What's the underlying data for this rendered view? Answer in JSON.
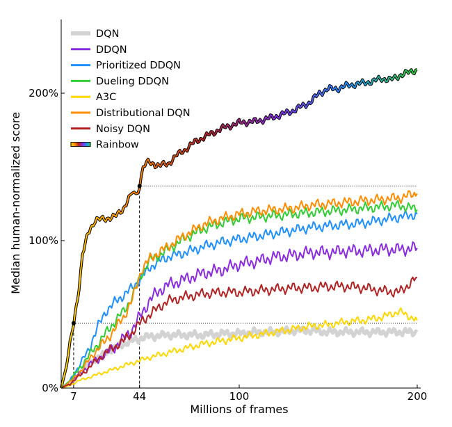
{
  "chart_data": {
    "type": "line",
    "title": "",
    "xlabel": "Millions of frames",
    "ylabel": "Median human-normalized score",
    "xlim": [
      0,
      200
    ],
    "ylim": [
      0,
      250
    ],
    "x_ticks": [
      7,
      44,
      100,
      200
    ],
    "y_ticks": [
      0,
      100,
      200
    ],
    "y_tick_labels": [
      "0%",
      "100%",
      "200%"
    ],
    "grid": false,
    "legend_position": "top-left",
    "reference_lines": [
      {
        "x": 7,
        "y": 44,
        "color": "#000000"
      },
      {
        "x": 44,
        "y": 137,
        "color": "#000000"
      }
    ],
    "series": [
      {
        "name": "DQN",
        "color": "#d3d3d3",
        "width": 5,
        "points": [
          [
            0,
            0
          ],
          [
            5,
            3
          ],
          [
            10,
            10
          ],
          [
            15,
            16
          ],
          [
            20,
            20
          ],
          [
            25,
            24
          ],
          [
            30,
            27
          ],
          [
            35,
            30
          ],
          [
            40,
            32
          ],
          [
            45,
            34
          ],
          [
            50,
            35
          ],
          [
            60,
            36
          ],
          [
            70,
            36
          ],
          [
            80,
            36
          ],
          [
            90,
            37
          ],
          [
            100,
            37
          ],
          [
            110,
            38
          ],
          [
            120,
            38
          ],
          [
            130,
            39
          ],
          [
            140,
            39
          ],
          [
            150,
            38
          ],
          [
            160,
            38
          ],
          [
            170,
            38
          ],
          [
            180,
            38
          ],
          [
            190,
            38
          ],
          [
            200,
            38
          ]
        ]
      },
      {
        "name": "DDQN",
        "color": "#8a2be2",
        "width": 2,
        "points": [
          [
            0,
            0
          ],
          [
            5,
            3
          ],
          [
            10,
            9
          ],
          [
            15,
            15
          ],
          [
            20,
            19
          ],
          [
            25,
            23
          ],
          [
            30,
            28
          ],
          [
            35,
            33
          ],
          [
            40,
            40
          ],
          [
            45,
            50
          ],
          [
            50,
            60
          ],
          [
            55,
            66
          ],
          [
            60,
            70
          ],
          [
            70,
            74
          ],
          [
            80,
            78
          ],
          [
            90,
            80
          ],
          [
            100,
            84
          ],
          [
            110,
            86
          ],
          [
            120,
            89
          ],
          [
            130,
            90
          ],
          [
            140,
            92
          ],
          [
            150,
            92
          ],
          [
            160,
            93
          ],
          [
            170,
            93
          ],
          [
            180,
            94
          ],
          [
            190,
            94
          ],
          [
            200,
            95
          ]
        ]
      },
      {
        "name": "Prioritized DDQN",
        "color": "#1e90ff",
        "width": 2,
        "points": [
          [
            0,
            0
          ],
          [
            5,
            5
          ],
          [
            10,
            15
          ],
          [
            15,
            25
          ],
          [
            20,
            40
          ],
          [
            25,
            52
          ],
          [
            30,
            58
          ],
          [
            35,
            63
          ],
          [
            40,
            68
          ],
          [
            45,
            75
          ],
          [
            50,
            82
          ],
          [
            55,
            86
          ],
          [
            60,
            89
          ],
          [
            70,
            92
          ],
          [
            80,
            96
          ],
          [
            90,
            99
          ],
          [
            100,
            101
          ],
          [
            110,
            103
          ],
          [
            120,
            105
          ],
          [
            130,
            107
          ],
          [
            140,
            109
          ],
          [
            150,
            110
          ],
          [
            160,
            111
          ],
          [
            170,
            112
          ],
          [
            180,
            114
          ],
          [
            190,
            116
          ],
          [
            200,
            118
          ]
        ]
      },
      {
        "name": "Dueling DDQN",
        "color": "#32cd32",
        "width": 2,
        "points": [
          [
            0,
            0
          ],
          [
            5,
            5
          ],
          [
            10,
            13
          ],
          [
            15,
            21
          ],
          [
            20,
            29
          ],
          [
            25,
            37
          ],
          [
            30,
            45
          ],
          [
            35,
            52
          ],
          [
            40,
            62
          ],
          [
            45,
            77
          ],
          [
            50,
            87
          ],
          [
            55,
            90
          ],
          [
            60,
            94
          ],
          [
            70,
            102
          ],
          [
            80,
            108
          ],
          [
            90,
            112
          ],
          [
            100,
            115
          ],
          [
            110,
            116
          ],
          [
            120,
            117
          ],
          [
            130,
            118
          ],
          [
            140,
            119
          ],
          [
            150,
            120
          ],
          [
            160,
            121
          ],
          [
            170,
            122
          ],
          [
            180,
            123
          ],
          [
            190,
            124
          ],
          [
            200,
            121
          ]
        ]
      },
      {
        "name": "A3C",
        "color": "#ffd700",
        "width": 2,
        "points": [
          [
            0,
            0
          ],
          [
            5,
            2
          ],
          [
            10,
            5
          ],
          [
            15,
            7
          ],
          [
            20,
            9
          ],
          [
            25,
            11
          ],
          [
            30,
            13
          ],
          [
            35,
            15
          ],
          [
            40,
            17
          ],
          [
            45,
            19
          ],
          [
            50,
            21
          ],
          [
            60,
            24
          ],
          [
            70,
            27
          ],
          [
            80,
            30
          ],
          [
            90,
            32
          ],
          [
            100,
            34
          ],
          [
            110,
            36
          ],
          [
            120,
            38
          ],
          [
            130,
            40
          ],
          [
            140,
            42
          ],
          [
            150,
            43
          ],
          [
            160,
            45
          ],
          [
            170,
            46
          ],
          [
            180,
            48
          ],
          [
            190,
            52
          ],
          [
            200,
            46
          ]
        ]
      },
      {
        "name": "Distributional DQN",
        "color": "#ff8c00",
        "width": 2,
        "points": [
          [
            0,
            0
          ],
          [
            5,
            4
          ],
          [
            10,
            10
          ],
          [
            15,
            18
          ],
          [
            20,
            26
          ],
          [
            25,
            32
          ],
          [
            30,
            40
          ],
          [
            35,
            48
          ],
          [
            40,
            60
          ],
          [
            45,
            80
          ],
          [
            50,
            88
          ],
          [
            55,
            92
          ],
          [
            60,
            96
          ],
          [
            70,
            104
          ],
          [
            80,
            111
          ],
          [
            90,
            115
          ],
          [
            100,
            118
          ],
          [
            110,
            120
          ],
          [
            120,
            121
          ],
          [
            130,
            122
          ],
          [
            140,
            124
          ],
          [
            150,
            125
          ],
          [
            160,
            126
          ],
          [
            170,
            127
          ],
          [
            180,
            128
          ],
          [
            190,
            129
          ],
          [
            200,
            132
          ]
        ]
      },
      {
        "name": "Noisy DQN",
        "color": "#b22222",
        "width": 2,
        "points": [
          [
            0,
            0
          ],
          [
            5,
            3
          ],
          [
            10,
            8
          ],
          [
            15,
            13
          ],
          [
            20,
            19
          ],
          [
            25,
            24
          ],
          [
            30,
            28
          ],
          [
            35,
            32
          ],
          [
            40,
            38
          ],
          [
            45,
            45
          ],
          [
            50,
            50
          ],
          [
            55,
            55
          ],
          [
            60,
            59
          ],
          [
            70,
            62
          ],
          [
            80,
            64
          ],
          [
            90,
            65
          ],
          [
            100,
            65
          ],
          [
            110,
            66
          ],
          [
            120,
            67
          ],
          [
            130,
            68
          ],
          [
            140,
            68
          ],
          [
            150,
            69
          ],
          [
            160,
            69
          ],
          [
            170,
            68
          ],
          [
            180,
            66
          ],
          [
            190,
            65
          ],
          [
            200,
            75
          ]
        ]
      },
      {
        "name": "Rainbow",
        "color": "#000000",
        "width": 2,
        "rainbow": true,
        "points": [
          [
            0,
            0
          ],
          [
            3,
            15
          ],
          [
            5,
            30
          ],
          [
            7,
            44
          ],
          [
            10,
            68
          ],
          [
            12,
            90
          ],
          [
            15,
            105
          ],
          [
            18,
            112
          ],
          [
            20,
            114
          ],
          [
            25,
            115
          ],
          [
            30,
            116
          ],
          [
            35,
            122
          ],
          [
            38,
            128
          ],
          [
            40,
            133
          ],
          [
            42,
            131
          ],
          [
            44,
            137
          ],
          [
            46,
            150
          ],
          [
            48,
            153
          ],
          [
            52,
            152
          ],
          [
            55,
            151
          ],
          [
            60,
            152
          ],
          [
            65,
            158
          ],
          [
            70,
            162
          ],
          [
            75,
            167
          ],
          [
            80,
            170
          ],
          [
            85,
            173
          ],
          [
            90,
            176
          ],
          [
            95,
            178
          ],
          [
            100,
            180
          ],
          [
            110,
            181
          ],
          [
            120,
            184
          ],
          [
            130,
            188
          ],
          [
            140,
            194
          ],
          [
            145,
            200
          ],
          [
            150,
            203
          ],
          [
            155,
            203
          ],
          [
            160,
            205
          ],
          [
            165,
            206
          ],
          [
            170,
            207
          ],
          [
            175,
            208
          ],
          [
            180,
            210
          ],
          [
            185,
            209
          ],
          [
            190,
            212
          ],
          [
            195,
            214
          ],
          [
            200,
            216
          ]
        ]
      }
    ]
  }
}
